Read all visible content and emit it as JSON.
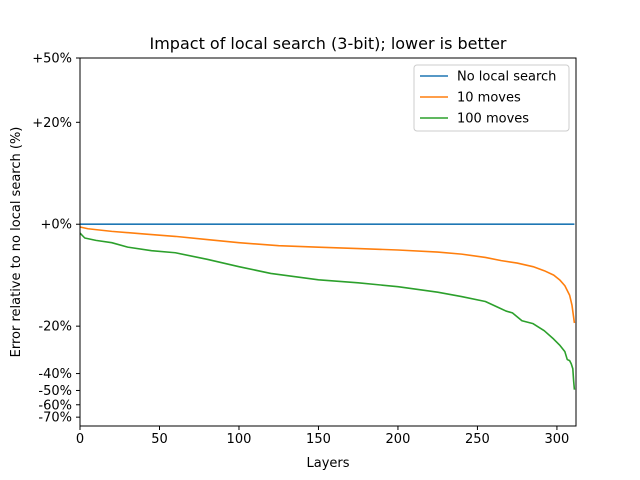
{
  "chart_data": {
    "type": "line",
    "title": "Impact of local search (3-bit); lower is better",
    "xlabel": "Layers",
    "ylabel": "Error relative to no local search (%)",
    "xlim": [
      0,
      312
    ],
    "x_ticks": [
      0,
      50,
      100,
      150,
      200,
      250,
      300
    ],
    "x_tick_labels": [
      "0",
      "50",
      "100",
      "150",
      "200",
      "250",
      "300"
    ],
    "ylim": [
      -78,
      50
    ],
    "y_scale": "symmetric-log",
    "y_ticks": [
      50,
      20,
      0,
      -20,
      -40,
      -50,
      -60,
      -70
    ],
    "y_tick_labels": [
      "+50%",
      "+20%",
      "+0%",
      "-20%",
      "-40%",
      "-50%",
      "-60%",
      "-70%"
    ],
    "grid": false,
    "legend_position": "top-right",
    "series": [
      {
        "name": "No local search",
        "color": "#1f77b4",
        "x": [
          0,
          311
        ],
        "y": [
          0,
          0
        ]
      },
      {
        "name": "10 moves",
        "color": "#ff7f0e",
        "x": [
          0,
          5,
          20,
          40,
          60,
          80,
          100,
          125,
          150,
          175,
          200,
          225,
          240,
          255,
          265,
          275,
          285,
          292,
          298,
          302,
          305,
          308,
          309.5,
          311
        ],
        "y": [
          -0.3,
          -0.5,
          -0.8,
          -1.1,
          -1.4,
          -1.8,
          -2.2,
          -2.6,
          -2.8,
          -3.0,
          -3.2,
          -3.5,
          -3.8,
          -4.3,
          -4.8,
          -5.2,
          -5.8,
          -6.5,
          -7.3,
          -8.3,
          -9.4,
          -11.5,
          -14.0,
          -19.0
        ]
      },
      {
        "name": "100 moves",
        "color": "#2ca02c",
        "x": [
          0,
          3,
          10,
          20,
          30,
          45,
          60,
          80,
          100,
          120,
          150,
          175,
          200,
          225,
          240,
          255,
          263,
          268,
          272,
          278,
          285,
          292,
          298,
          302,
          305,
          306.5,
          308,
          309,
          310,
          310.5,
          311
        ],
        "y": [
          -1.0,
          -1.6,
          -1.9,
          -2.2,
          -2.8,
          -3.3,
          -3.6,
          -4.6,
          -5.8,
          -7.0,
          -8.2,
          -8.8,
          -9.6,
          -10.8,
          -11.8,
          -13.0,
          -14.5,
          -15.5,
          -16.0,
          -18.3,
          -19.2,
          -21.5,
          -24.5,
          -27.0,
          -29.5,
          -33.0,
          -33.5,
          -35.0,
          -37.5,
          -44.0,
          -49.5
        ]
      }
    ]
  }
}
